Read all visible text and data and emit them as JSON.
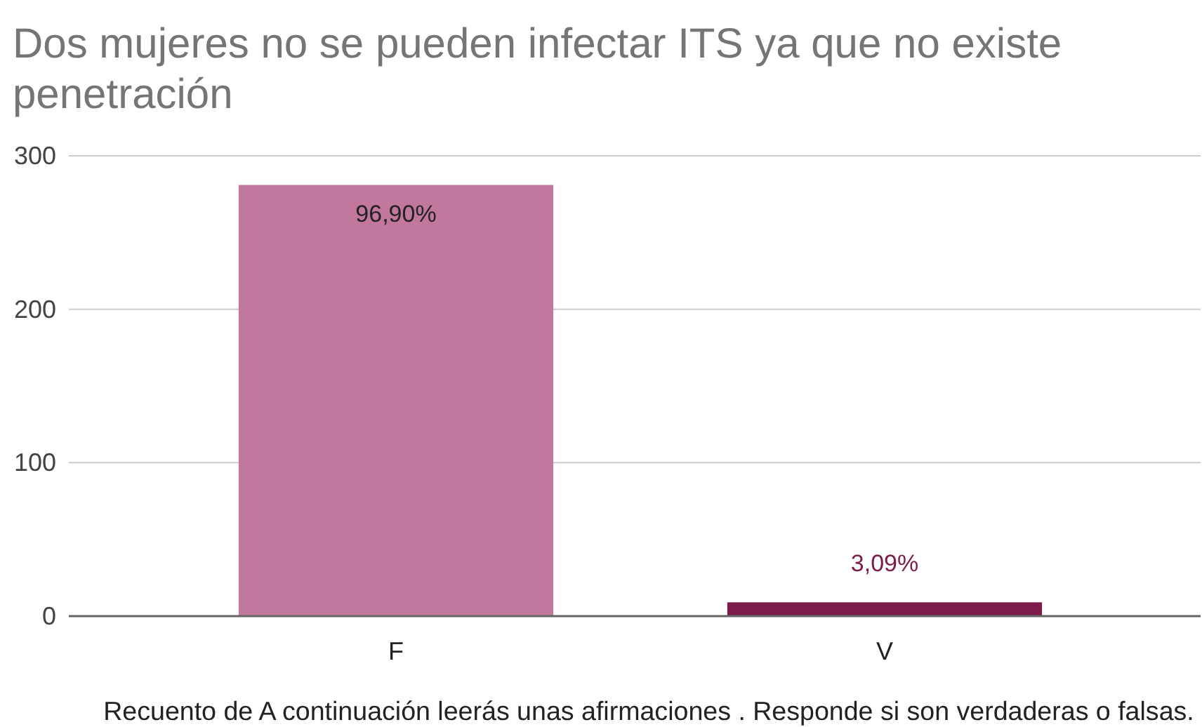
{
  "chart_data": {
    "type": "bar",
    "title": "Dos mujeres no se pueden infectar ITS ya que no existe penetración",
    "xlabel": "Recuento de A continuación leerás unas afirmaciones . Responde si son verdaderas o falsas.",
    "categories": [
      "F",
      "V"
    ],
    "values": [
      281,
      9
    ],
    "colors": [
      "#c2789d",
      "#7b1c4a"
    ],
    "annotations": [
      {
        "text": "96,90%",
        "x": "F",
        "y": 281
      },
      {
        "text": "3,09%",
        "x": "V",
        "y": 9
      }
    ],
    "ylim": [
      0,
      300
    ],
    "yticks": [
      0,
      100,
      200,
      300
    ],
    "grid": "y"
  }
}
